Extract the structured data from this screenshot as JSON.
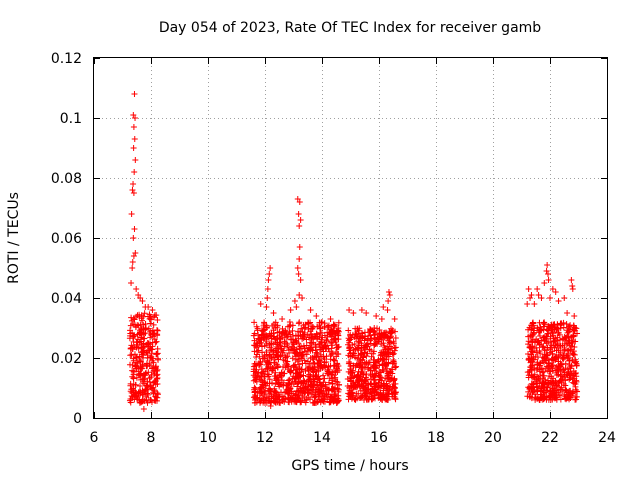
{
  "chart_data": {
    "type": "scatter",
    "title": "Day 054 of 2023, Rate Of TEC Index for receiver gamb",
    "xlabel": "GPS time / hours",
    "ylabel": "ROTI / TECUs",
    "xlim": [
      6,
      24
    ],
    "ylim": [
      0,
      0.12
    ],
    "x_ticks": [
      "6",
      "8",
      "10",
      "12",
      "14",
      "16",
      "18",
      "20",
      "22",
      "24"
    ],
    "y_ticks": [
      "0",
      "0.02",
      "0.04",
      "0.06",
      "0.08",
      "0.1",
      "0.12"
    ],
    "grid": true,
    "marker": "+",
    "color": "#ff0000",
    "clusters": [
      {
        "x_range": [
          7.25,
          8.25
        ],
        "y_range": [
          0.005,
          0.035
        ]
      },
      {
        "x_range": [
          11.6,
          14.6
        ],
        "y_range": [
          0.005,
          0.032
        ]
      },
      {
        "x_range": [
          14.9,
          16.6
        ],
        "y_range": [
          0.006,
          0.03
        ]
      },
      {
        "x_range": [
          21.2,
          22.95
        ],
        "y_range": [
          0.006,
          0.032
        ]
      }
    ],
    "points": [
      {
        "x": 7.42,
        "y": 0.108
      },
      {
        "x": 7.38,
        "y": 0.101
      },
      {
        "x": 7.44,
        "y": 0.1
      },
      {
        "x": 7.4,
        "y": 0.097
      },
      {
        "x": 7.43,
        "y": 0.093
      },
      {
        "x": 7.39,
        "y": 0.09
      },
      {
        "x": 7.45,
        "y": 0.086
      },
      {
        "x": 7.41,
        "y": 0.082
      },
      {
        "x": 7.37,
        "y": 0.078
      },
      {
        "x": 7.4,
        "y": 0.075
      },
      {
        "x": 7.35,
        "y": 0.076
      },
      {
        "x": 7.32,
        "y": 0.068
      },
      {
        "x": 7.42,
        "y": 0.063
      },
      {
        "x": 7.38,
        "y": 0.06
      },
      {
        "x": 7.45,
        "y": 0.055
      },
      {
        "x": 7.4,
        "y": 0.054
      },
      {
        "x": 7.36,
        "y": 0.052
      },
      {
        "x": 7.34,
        "y": 0.05
      },
      {
        "x": 7.3,
        "y": 0.045
      },
      {
        "x": 7.48,
        "y": 0.043
      },
      {
        "x": 7.55,
        "y": 0.041
      },
      {
        "x": 7.62,
        "y": 0.04
      },
      {
        "x": 7.7,
        "y": 0.039
      },
      {
        "x": 7.8,
        "y": 0.037
      },
      {
        "x": 7.9,
        "y": 0.037
      },
      {
        "x": 8.05,
        "y": 0.036
      },
      {
        "x": 7.75,
        "y": 0.003
      },
      {
        "x": 11.85,
        "y": 0.038
      },
      {
        "x": 12.05,
        "y": 0.037
      },
      {
        "x": 12.1,
        "y": 0.043
      },
      {
        "x": 12.12,
        "y": 0.046
      },
      {
        "x": 12.15,
        "y": 0.048
      },
      {
        "x": 12.18,
        "y": 0.05
      },
      {
        "x": 12.08,
        "y": 0.04
      },
      {
        "x": 12.3,
        "y": 0.035
      },
      {
        "x": 12.6,
        "y": 0.033
      },
      {
        "x": 12.9,
        "y": 0.036
      },
      {
        "x": 13.05,
        "y": 0.039
      },
      {
        "x": 13.15,
        "y": 0.073
      },
      {
        "x": 13.22,
        "y": 0.072
      },
      {
        "x": 13.18,
        "y": 0.068
      },
      {
        "x": 13.25,
        "y": 0.066
      },
      {
        "x": 13.2,
        "y": 0.064
      },
      {
        "x": 13.22,
        "y": 0.057
      },
      {
        "x": 13.2,
        "y": 0.053
      },
      {
        "x": 13.15,
        "y": 0.05
      },
      {
        "x": 13.18,
        "y": 0.048
      },
      {
        "x": 13.25,
        "y": 0.046
      },
      {
        "x": 13.2,
        "y": 0.041
      },
      {
        "x": 13.3,
        "y": 0.04
      },
      {
        "x": 13.1,
        "y": 0.037
      },
      {
        "x": 13.6,
        "y": 0.036
      },
      {
        "x": 13.8,
        "y": 0.034
      },
      {
        "x": 14.0,
        "y": 0.032
      },
      {
        "x": 14.3,
        "y": 0.033
      },
      {
        "x": 12.0,
        "y": 0.005
      },
      {
        "x": 12.2,
        "y": 0.004
      },
      {
        "x": 14.95,
        "y": 0.036
      },
      {
        "x": 15.1,
        "y": 0.035
      },
      {
        "x": 15.4,
        "y": 0.036
      },
      {
        "x": 15.55,
        "y": 0.035
      },
      {
        "x": 15.9,
        "y": 0.034
      },
      {
        "x": 16.1,
        "y": 0.033
      },
      {
        "x": 16.15,
        "y": 0.037
      },
      {
        "x": 16.3,
        "y": 0.036
      },
      {
        "x": 16.32,
        "y": 0.039
      },
      {
        "x": 16.35,
        "y": 0.042
      },
      {
        "x": 16.38,
        "y": 0.041
      },
      {
        "x": 16.55,
        "y": 0.033
      },
      {
        "x": 21.2,
        "y": 0.038
      },
      {
        "x": 21.25,
        "y": 0.043
      },
      {
        "x": 21.3,
        "y": 0.04
      },
      {
        "x": 21.35,
        "y": 0.041
      },
      {
        "x": 21.45,
        "y": 0.038
      },
      {
        "x": 21.55,
        "y": 0.043
      },
      {
        "x": 21.6,
        "y": 0.041
      },
      {
        "x": 21.7,
        "y": 0.04
      },
      {
        "x": 21.8,
        "y": 0.045
      },
      {
        "x": 21.88,
        "y": 0.049
      },
      {
        "x": 21.9,
        "y": 0.051
      },
      {
        "x": 21.93,
        "y": 0.048
      },
      {
        "x": 21.95,
        "y": 0.046
      },
      {
        "x": 22.0,
        "y": 0.04
      },
      {
        "x": 22.1,
        "y": 0.043
      },
      {
        "x": 22.2,
        "y": 0.042
      },
      {
        "x": 22.3,
        "y": 0.039
      },
      {
        "x": 22.5,
        "y": 0.04
      },
      {
        "x": 22.6,
        "y": 0.035
      },
      {
        "x": 22.75,
        "y": 0.046
      },
      {
        "x": 22.78,
        "y": 0.044
      },
      {
        "x": 22.8,
        "y": 0.043
      },
      {
        "x": 22.85,
        "y": 0.034
      }
    ]
  }
}
